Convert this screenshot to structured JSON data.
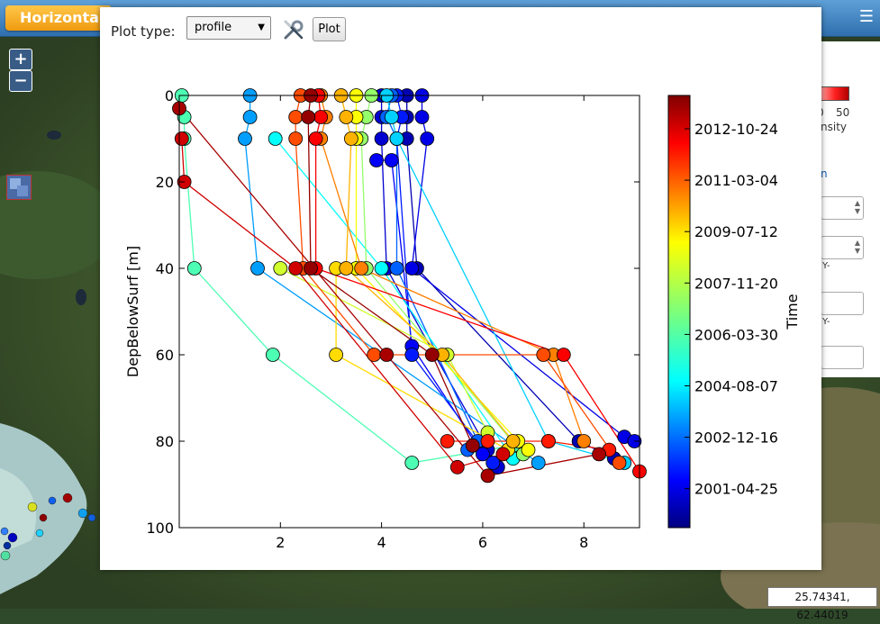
{
  "app": {
    "title": "Horizonta",
    "menu_icon": "hamburger-icon",
    "zoom_in_label": "+",
    "zoom_out_label": "−",
    "coordinates": "25.74341, 62.44019"
  },
  "side_panel": {
    "legend_max": "50",
    "legend_zero_fragment": "0",
    "legend_text": "nsity",
    "link_fragment": "n",
    "label1": "Y-",
    "label2": "Y-"
  },
  "plot_dialog": {
    "plot_type_label": "Plot type:",
    "plot_type_value": "profile",
    "plot_type_options": [
      "profile"
    ],
    "plot_button": "Plot",
    "tools_icon": "wrench-screwdriver-icon"
  },
  "chart_data": {
    "type": "scatter",
    "subtype": "profile lines colored by time",
    "xlabel": "",
    "ylabel": "DepBelowSurf [m]",
    "xlim": [
      0,
      9.1
    ],
    "ylim": [
      100,
      0
    ],
    "y_inverted": true,
    "xticks": [
      2,
      4,
      6,
      8
    ],
    "yticks": [
      0,
      20,
      40,
      60,
      80,
      100
    ],
    "colorbar": {
      "label": "Time",
      "colormap": "jet",
      "ticks": [
        "2012-10-24",
        "2011-03-04",
        "2009-07-12",
        "2007-11-20",
        "2006-03-30",
        "2004-08-07",
        "2002-12-16",
        "2001-04-25"
      ]
    },
    "profiles": [
      {
        "t": 0.05,
        "points": [
          [
            4.5,
            0
          ],
          [
            4.5,
            5
          ],
          [
            4.5,
            10
          ],
          [
            4.7,
            40
          ],
          [
            7.9,
            80
          ],
          [
            8.6,
            84
          ]
        ]
      },
      {
        "t": 0.08,
        "points": [
          [
            4.0,
            0
          ],
          [
            4.0,
            5
          ],
          [
            4.0,
            10
          ],
          [
            4.1,
            40
          ],
          [
            6.1,
            82
          ],
          [
            6.3,
            86
          ]
        ]
      },
      {
        "t": 0.1,
        "points": [
          [
            4.8,
            0
          ],
          [
            4.8,
            5
          ],
          [
            4.9,
            10
          ],
          [
            4.6,
            40
          ],
          [
            8.8,
            79
          ],
          [
            9.0,
            80
          ]
        ]
      },
      {
        "t": 0.12,
        "points": [
          [
            3.9,
            15
          ],
          [
            4.2,
            15
          ],
          [
            4.6,
            58
          ],
          [
            6.0,
            83
          ]
        ]
      },
      {
        "t": 0.15,
        "points": [
          [
            4.3,
            0
          ],
          [
            4.4,
            5
          ],
          [
            4.3,
            10
          ],
          [
            4.6,
            60
          ],
          [
            6.2,
            85
          ]
        ]
      },
      {
        "t": 0.22,
        "points": [
          [
            4.2,
            0
          ],
          [
            4.1,
            5
          ],
          [
            4.3,
            10
          ],
          [
            4.3,
            40
          ],
          [
            5.9,
            80
          ],
          [
            5.7,
            82
          ]
        ]
      },
      {
        "t": 0.28,
        "points": [
          [
            1.4,
            0
          ],
          [
            1.4,
            5
          ],
          [
            1.3,
            10
          ],
          [
            1.55,
            40
          ],
          [
            7.1,
            85
          ]
        ]
      },
      {
        "t": 0.33,
        "points": [
          [
            4.1,
            0
          ],
          [
            4.2,
            5
          ],
          [
            4.3,
            10
          ],
          [
            7.3,
            80
          ],
          [
            8.8,
            85
          ]
        ]
      },
      {
        "t": 0.38,
        "points": [
          [
            1.9,
            10
          ],
          [
            4.0,
            40
          ],
          [
            6.6,
            84
          ]
        ]
      },
      {
        "t": 0.45,
        "points": [
          [
            0.05,
            0
          ],
          [
            0.1,
            5
          ],
          [
            0.1,
            10
          ],
          [
            0.3,
            40
          ],
          [
            1.85,
            60
          ],
          [
            4.6,
            85
          ],
          [
            6.6,
            81
          ]
        ]
      },
      {
        "t": 0.52,
        "points": [
          [
            3.8,
            0
          ],
          [
            3.7,
            5
          ],
          [
            3.6,
            10
          ],
          [
            3.7,
            40
          ],
          [
            6.8,
            83
          ]
        ]
      },
      {
        "t": 0.58,
        "points": [
          [
            2.0,
            40
          ],
          [
            5.3,
            60
          ],
          [
            6.1,
            78
          ]
        ]
      },
      {
        "t": 0.62,
        "points": [
          [
            3.5,
            0
          ],
          [
            3.5,
            5
          ],
          [
            3.5,
            10
          ],
          [
            3.5,
            40
          ],
          [
            6.7,
            80
          ],
          [
            6.9,
            82
          ]
        ]
      },
      {
        "t": 0.66,
        "points": [
          [
            3.1,
            40
          ],
          [
            3.1,
            60
          ],
          [
            6.5,
            82
          ]
        ]
      },
      {
        "t": 0.7,
        "points": [
          [
            3.2,
            0
          ],
          [
            3.3,
            5
          ],
          [
            3.4,
            10
          ],
          [
            3.3,
            40
          ],
          [
            5.2,
            60
          ],
          [
            6.6,
            80
          ]
        ]
      },
      {
        "t": 0.75,
        "points": [
          [
            2.8,
            0
          ],
          [
            2.9,
            5
          ],
          [
            2.8,
            10
          ],
          [
            3.6,
            40
          ],
          [
            7.4,
            60
          ],
          [
            8.0,
            80
          ]
        ]
      },
      {
        "t": 0.8,
        "points": [
          [
            2.4,
            0
          ],
          [
            2.3,
            5
          ],
          [
            2.3,
            10
          ],
          [
            2.45,
            40
          ],
          [
            3.85,
            60
          ],
          [
            7.2,
            60
          ],
          [
            8.7,
            85
          ]
        ]
      },
      {
        "t": 0.85,
        "points": [
          [
            5.3,
            80
          ],
          [
            6.1,
            80
          ],
          [
            7.3,
            80
          ],
          [
            8.5,
            82
          ]
        ]
      },
      {
        "t": 0.88,
        "points": [
          [
            2.75,
            0
          ],
          [
            2.8,
            5
          ],
          [
            2.7,
            10
          ],
          [
            2.7,
            40
          ],
          [
            7.6,
            60
          ],
          [
            9.1,
            87
          ]
        ]
      },
      {
        "t": 0.92,
        "points": [
          [
            0.05,
            10
          ],
          [
            0.1,
            20
          ],
          [
            2.3,
            40
          ],
          [
            5.5,
            86
          ],
          [
            6.4,
            83
          ]
        ]
      },
      {
        "t": 0.96,
        "points": [
          [
            0.0,
            3
          ],
          [
            4.1,
            60
          ],
          [
            6.1,
            88
          ],
          [
            8.3,
            83
          ]
        ]
      },
      {
        "t": 0.98,
        "points": [
          [
            2.6,
            0
          ],
          [
            2.55,
            5
          ],
          [
            2.6,
            40
          ],
          [
            5.0,
            60
          ],
          [
            5.8,
            81
          ]
        ]
      }
    ]
  }
}
